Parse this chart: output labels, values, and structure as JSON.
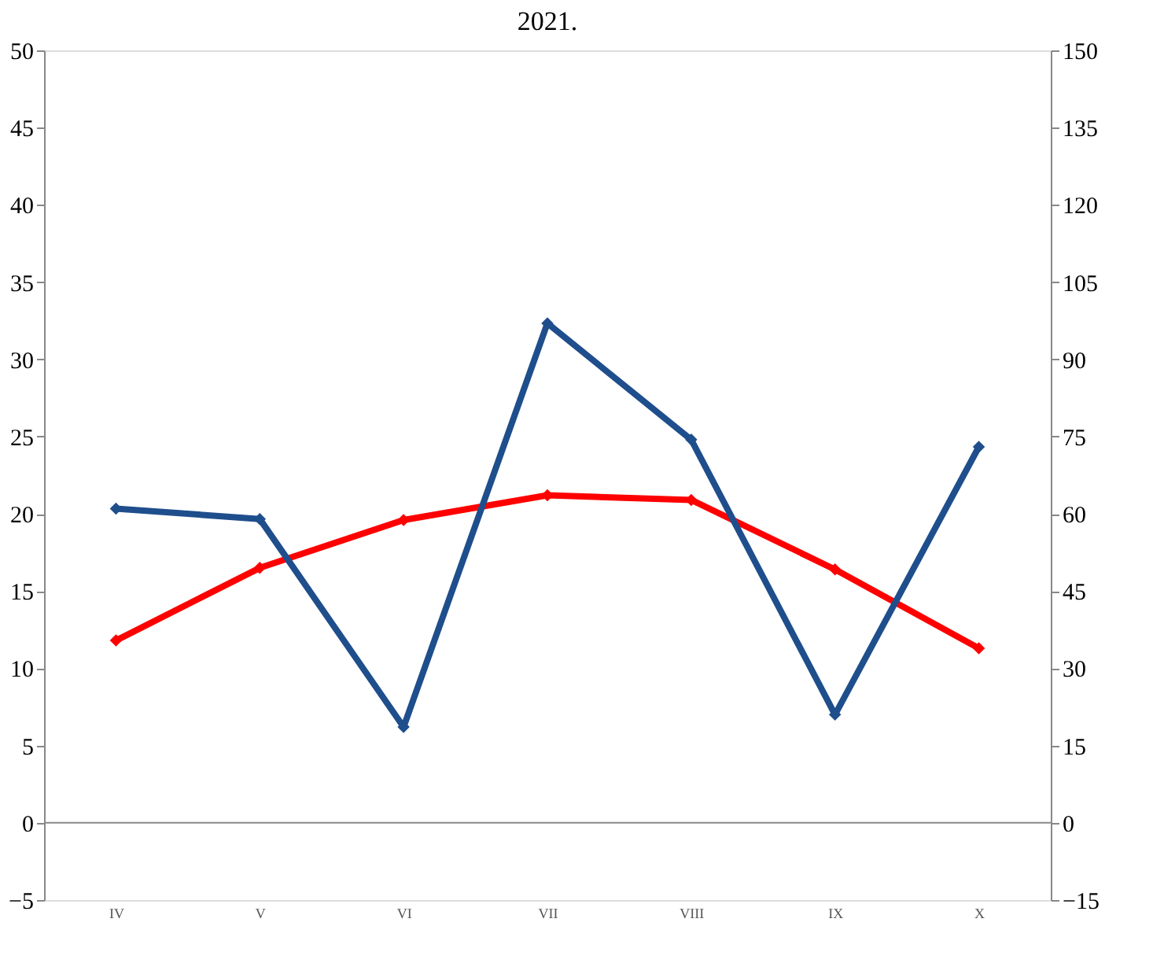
{
  "chart_data": {
    "type": "line",
    "title": "2021.",
    "categories": [
      "IV",
      "V",
      "VI",
      "VII",
      "VIII",
      "IX",
      "X"
    ],
    "series": [
      {
        "color": "#ff0000",
        "values": [
          11.8,
          16.5,
          19.6,
          21.2,
          20.9,
          16.4,
          11.3
        ]
      },
      {
        "color": "#1f4e8c",
        "axis": "y2",
        "values": [
          61,
          59,
          18.6,
          97,
          74.4,
          21,
          73
        ]
      }
    ],
    "ylim": [
      -5,
      50
    ],
    "yticks": [
      -5,
      0,
      5,
      10,
      15,
      20,
      25,
      30,
      35,
      40,
      45,
      50
    ],
    "y2lim": [
      -15,
      150
    ],
    "y2ticks": [
      -15,
      0,
      15,
      30,
      45,
      60,
      75,
      90,
      105,
      120,
      135,
      150
    ],
    "ref_lines": [
      {
        "axis": "y",
        "value": 0,
        "color": "#888888"
      }
    ],
    "marker": "diamond",
    "line_style": "solid",
    "grid": false
  }
}
